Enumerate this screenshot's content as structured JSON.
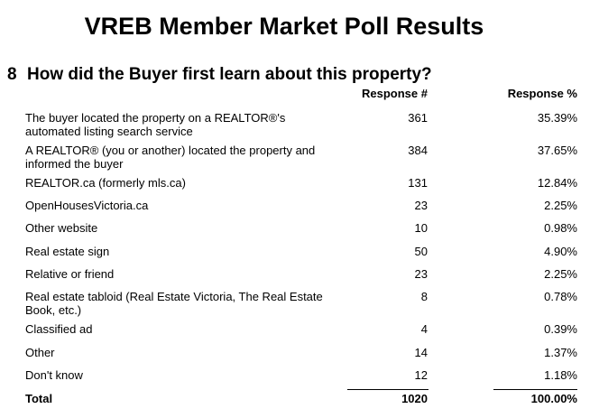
{
  "title": "VREB Member Market Poll Results",
  "question": {
    "number": "8",
    "text": "How did the Buyer first learn about this property?"
  },
  "headers": {
    "count": "Response #",
    "percent": "Response %"
  },
  "rows": [
    {
      "label": "The buyer located the property on a REALTOR®'s automated listing search service",
      "count": "361",
      "percent": "35.39%"
    },
    {
      "label": "A REALTOR® (you or another) located the property and informed the buyer",
      "count": "384",
      "percent": "37.65%"
    },
    {
      "label": "REALTOR.ca (formerly mls.ca)",
      "count": "131",
      "percent": "12.84%"
    },
    {
      "label": "OpenHousesVictoria.ca",
      "count": "23",
      "percent": "2.25%"
    },
    {
      "label": "Other website",
      "count": "10",
      "percent": "0.98%"
    },
    {
      "label": "Real estate sign",
      "count": "50",
      "percent": "4.90%"
    },
    {
      "label": "Relative or friend",
      "count": "23",
      "percent": "2.25%"
    },
    {
      "label": "Real estate tabloid (Real Estate Victoria, The Real Estate Book, etc.)",
      "count": "8",
      "percent": "0.78%"
    },
    {
      "label": "Classified ad",
      "count": "4",
      "percent": "0.39%"
    },
    {
      "label": "Other",
      "count": "14",
      "percent": "1.37%"
    },
    {
      "label": "Don't know",
      "count": "12",
      "percent": "1.18%"
    }
  ],
  "total": {
    "label": "Total",
    "count": "1020",
    "percent": "100.00%"
  }
}
